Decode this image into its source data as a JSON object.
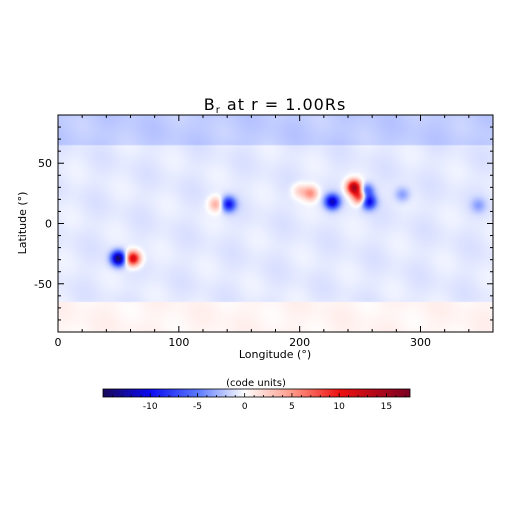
{
  "chart_data": [
    {
      "type": "heatmap",
      "title": "B",
      "title_sub": "r",
      "title_rest": " at r = 1.00Rs",
      "xlabel": "Longitude (°)",
      "ylabel": "Latitude (°)",
      "xlim": [
        0,
        360
      ],
      "ylim": [
        -90,
        90
      ],
      "xticks": [
        0,
        100,
        200,
        300
      ],
      "yticks": [
        -50,
        0,
        50
      ],
      "grid": false,
      "value_range": [
        -15,
        17.5
      ],
      "background_field": {
        "north_of_lat": 65,
        "north_value": -1.9,
        "mid_value": -0.8,
        "south_of_lat": -65,
        "south_value": 0.5
      },
      "sources": [
        {
          "lon": 50,
          "lat": -29,
          "value": -14
        },
        {
          "lon": 62,
          "lat": -29,
          "value": 13
        },
        {
          "lon": 131,
          "lat": 16,
          "value": 5
        },
        {
          "lon": 141,
          "lat": 16,
          "value": -9
        },
        {
          "lon": 200,
          "lat": 27,
          "value": 3
        },
        {
          "lon": 209,
          "lat": 25,
          "value": 6
        },
        {
          "lon": 227,
          "lat": 18,
          "value": -11
        },
        {
          "lon": 245,
          "lat": 30,
          "value": 15
        },
        {
          "lon": 250,
          "lat": 22,
          "value": 10
        },
        {
          "lon": 255,
          "lat": 27,
          "value": -7
        },
        {
          "lon": 257,
          "lat": 18,
          "value": -10
        },
        {
          "lon": 285,
          "lat": 24,
          "value": -3
        },
        {
          "lon": 348,
          "lat": 15,
          "value": -2.5
        }
      ]
    },
    {
      "type": "colorbar",
      "label": "(code units)",
      "range": [
        -15,
        17.5
      ],
      "ticks": [
        -10,
        -5,
        0,
        5,
        10,
        15
      ],
      "colormap": [
        [
          -15,
          "#1a0a5a"
        ],
        [
          -10,
          "#0a0af0"
        ],
        [
          -5,
          "#5a78ff"
        ],
        [
          0,
          "#ffffff"
        ],
        [
          5,
          "#ff9a8a"
        ],
        [
          10,
          "#ee1111"
        ],
        [
          17.5,
          "#7a0022"
        ]
      ]
    }
  ]
}
